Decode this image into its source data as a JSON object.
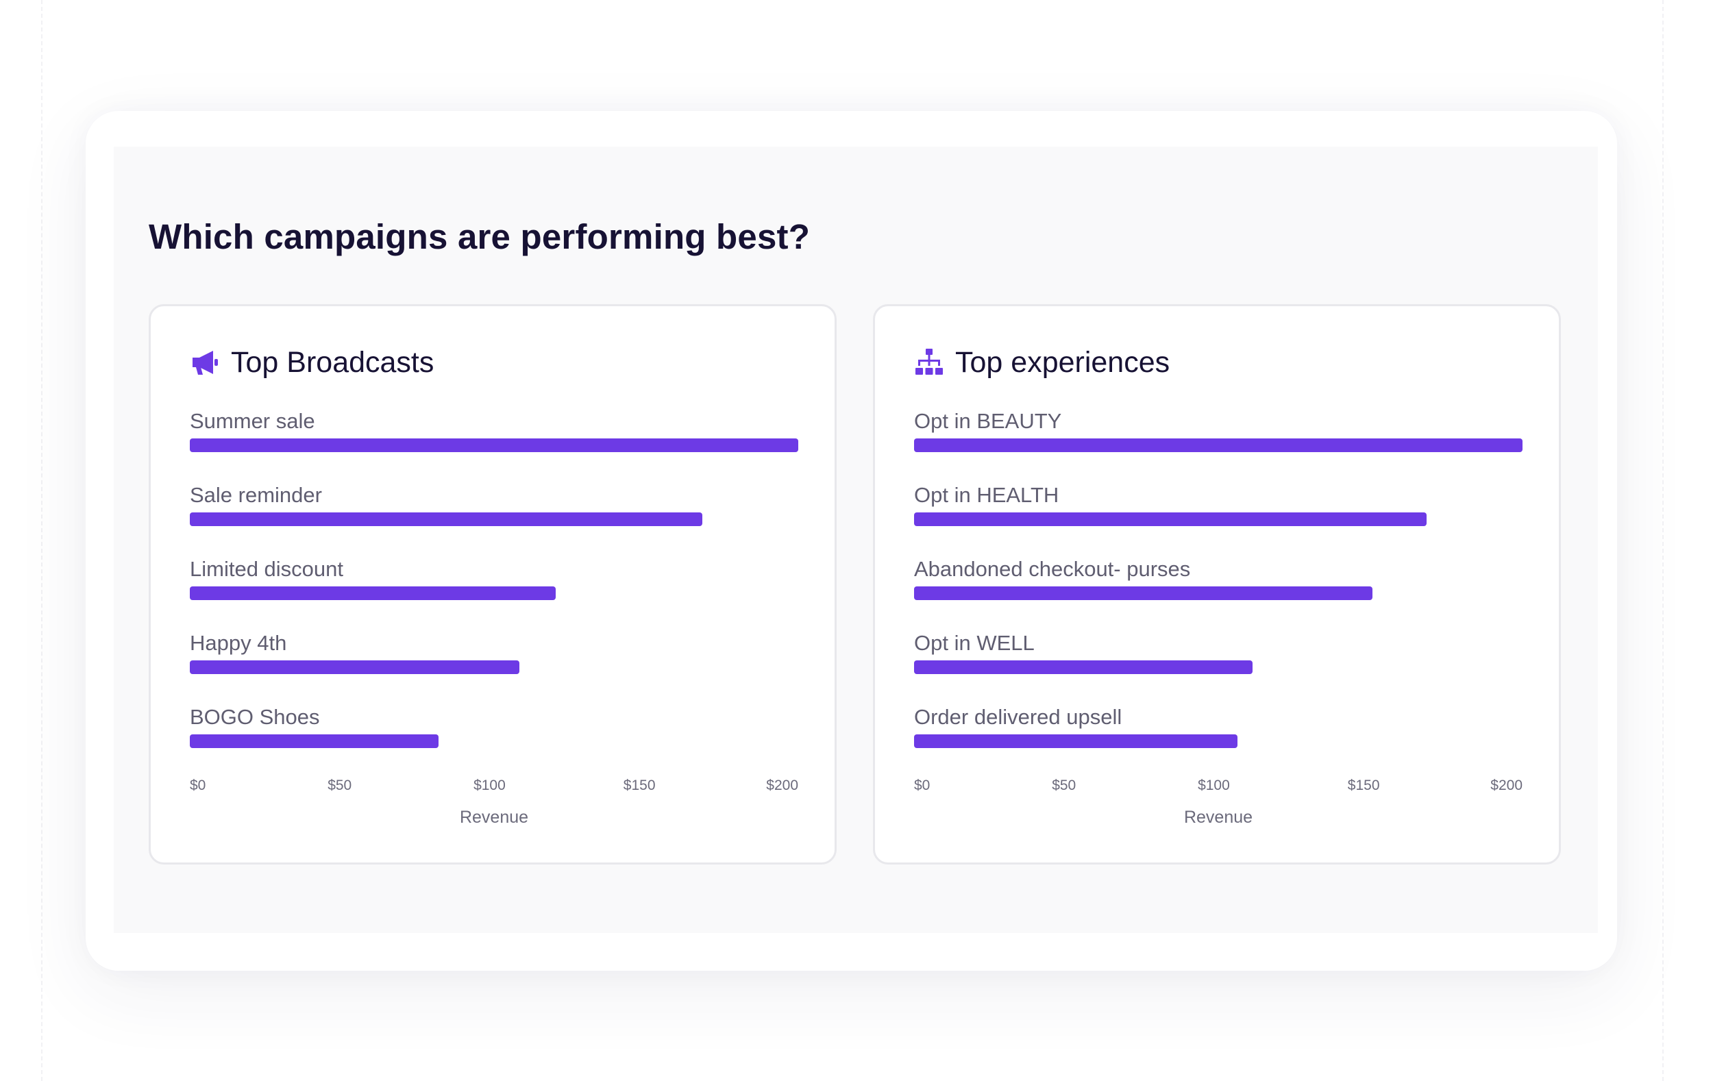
{
  "headline": "Which campaigns are performing best?",
  "colors": {
    "bar": "#6d3ae5",
    "icon": "#6d3ae5"
  },
  "chart_data": [
    {
      "type": "bar",
      "orientation": "horizontal",
      "title": "Top Broadcasts",
      "icon": "megaphone-icon",
      "categories": [
        "Summer sale",
        "Sale reminder",
        "Limited discount",
        "Happy 4th",
        "BOGO Shoes"
      ],
      "values": [
        203,
        171,
        122,
        110,
        83
      ],
      "xlabel": "Revenue",
      "xlim": [
        0,
        203
      ],
      "xticks": [
        0,
        50,
        100,
        150,
        200
      ],
      "xtick_labels": [
        "$0",
        "$50",
        "$100",
        "$150",
        "$200"
      ],
      "grid": false,
      "legend": "none"
    },
    {
      "type": "bar",
      "orientation": "horizontal",
      "title": "Top experiences",
      "icon": "sitemap-icon",
      "categories": [
        "Opt in BEAUTY",
        "Opt in HEALTH",
        "Abandoned checkout- purses",
        "Opt in WELL",
        "Order delivered upsell"
      ],
      "values": [
        203,
        171,
        153,
        113,
        108
      ],
      "xlabel": "Revenue",
      "xlim": [
        0,
        203
      ],
      "xticks": [
        0,
        50,
        100,
        150,
        200
      ],
      "xtick_labels": [
        "$0",
        "$50",
        "$100",
        "$150",
        "$200"
      ],
      "grid": false,
      "legend": "none"
    }
  ]
}
